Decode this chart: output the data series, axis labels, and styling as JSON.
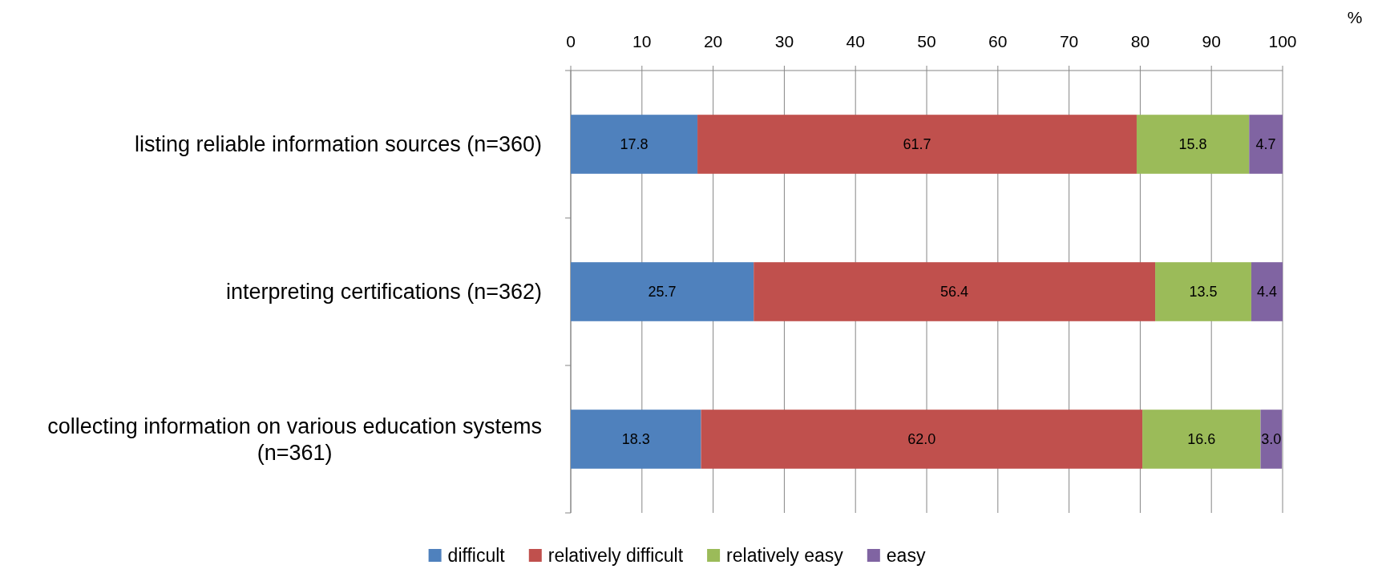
{
  "chart_data": {
    "type": "bar",
    "orientation": "horizontal",
    "stacked": true,
    "xlabel": "%",
    "categories": [
      "listing reliable information sources (n=360)",
      "interpreting certifications (n=362)",
      "collecting information on various education systems (n=361)"
    ],
    "series": [
      {
        "name": "difficult",
        "color": "#4f81bd",
        "values": [
          17.8,
          25.7,
          18.3
        ],
        "value_labels": [
          "17.8",
          "25.7",
          "18.3"
        ]
      },
      {
        "name": "relatively difficult",
        "color": "#c0504d",
        "values": [
          61.7,
          56.4,
          62.0
        ],
        "value_labels": [
          "61.7",
          "56.4",
          "62.0"
        ]
      },
      {
        "name": "relatively easy",
        "color": "#9bbb59",
        "values": [
          15.8,
          13.5,
          16.6
        ],
        "value_labels": [
          "15.8",
          "13.5",
          "16.6"
        ]
      },
      {
        "name": "easy",
        "color": "#8064a2",
        "values": [
          4.7,
          4.4,
          3.0
        ],
        "value_labels": [
          "4.7",
          "4.4",
          "3.0"
        ]
      }
    ],
    "xlim": [
      0,
      100
    ],
    "xticks": [
      0,
      10,
      20,
      30,
      40,
      50,
      60,
      70,
      80,
      90,
      100
    ],
    "grid": "x",
    "legend": "bottom"
  }
}
